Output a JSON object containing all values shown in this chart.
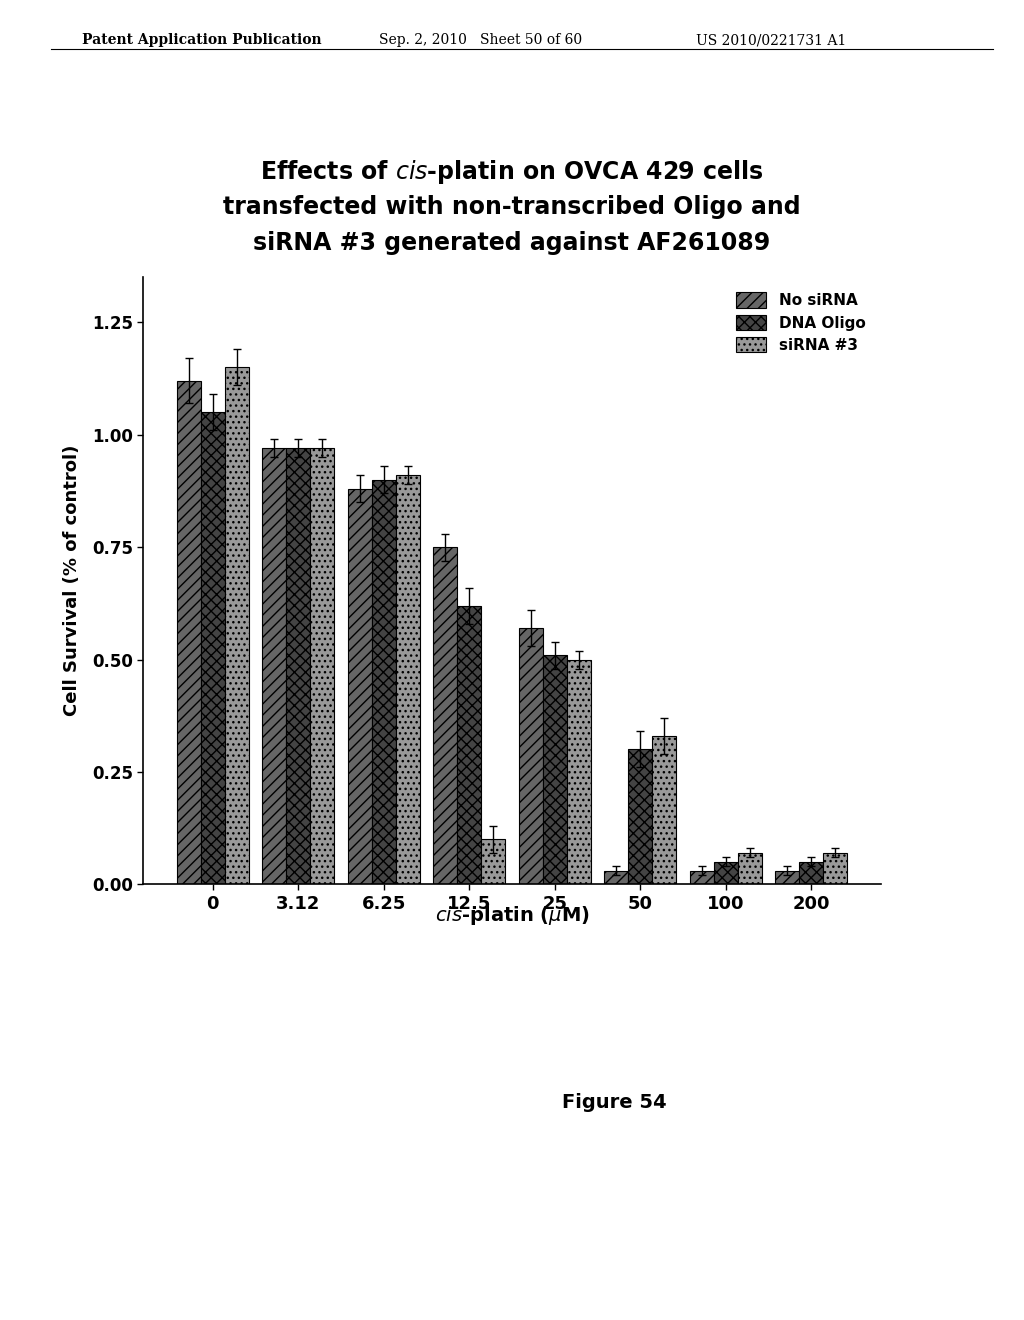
{
  "header_left": "Patent Application Publication",
  "header_mid": "Sep. 2, 2010   Sheet 50 of 60",
  "header_right": "US 2010/0221731 A1",
  "legend_labels": [
    "No siRNA",
    "DNA Oligo",
    "siRNA #3"
  ],
  "x_labels": [
    "0",
    "3.12",
    "6.25",
    "12.5",
    "25",
    "50",
    "100",
    "200"
  ],
  "no_sirna": [
    1.12,
    0.97,
    0.88,
    0.75,
    0.57,
    0.03,
    0.03,
    0.03
  ],
  "dna_oligo": [
    1.05,
    0.97,
    0.9,
    0.62,
    0.51,
    0.3,
    0.05,
    0.05
  ],
  "sirna3": [
    1.15,
    0.97,
    0.91,
    0.1,
    0.5,
    0.33,
    0.07,
    0.07
  ],
  "no_sirna_err": [
    0.05,
    0.02,
    0.03,
    0.03,
    0.04,
    0.01,
    0.01,
    0.01
  ],
  "dna_oligo_err": [
    0.04,
    0.02,
    0.03,
    0.04,
    0.03,
    0.04,
    0.01,
    0.01
  ],
  "sirna3_err": [
    0.04,
    0.02,
    0.02,
    0.03,
    0.02,
    0.04,
    0.01,
    0.01
  ],
  "bar_width": 0.28,
  "ylim": [
    0.0,
    1.35
  ],
  "yticks": [
    0.0,
    0.25,
    0.5,
    0.75,
    1.0,
    1.25
  ],
  "ylabel": "Cell Survival (% of control)",
  "figure_label": "Figure 54",
  "background_color": "#ffffff"
}
